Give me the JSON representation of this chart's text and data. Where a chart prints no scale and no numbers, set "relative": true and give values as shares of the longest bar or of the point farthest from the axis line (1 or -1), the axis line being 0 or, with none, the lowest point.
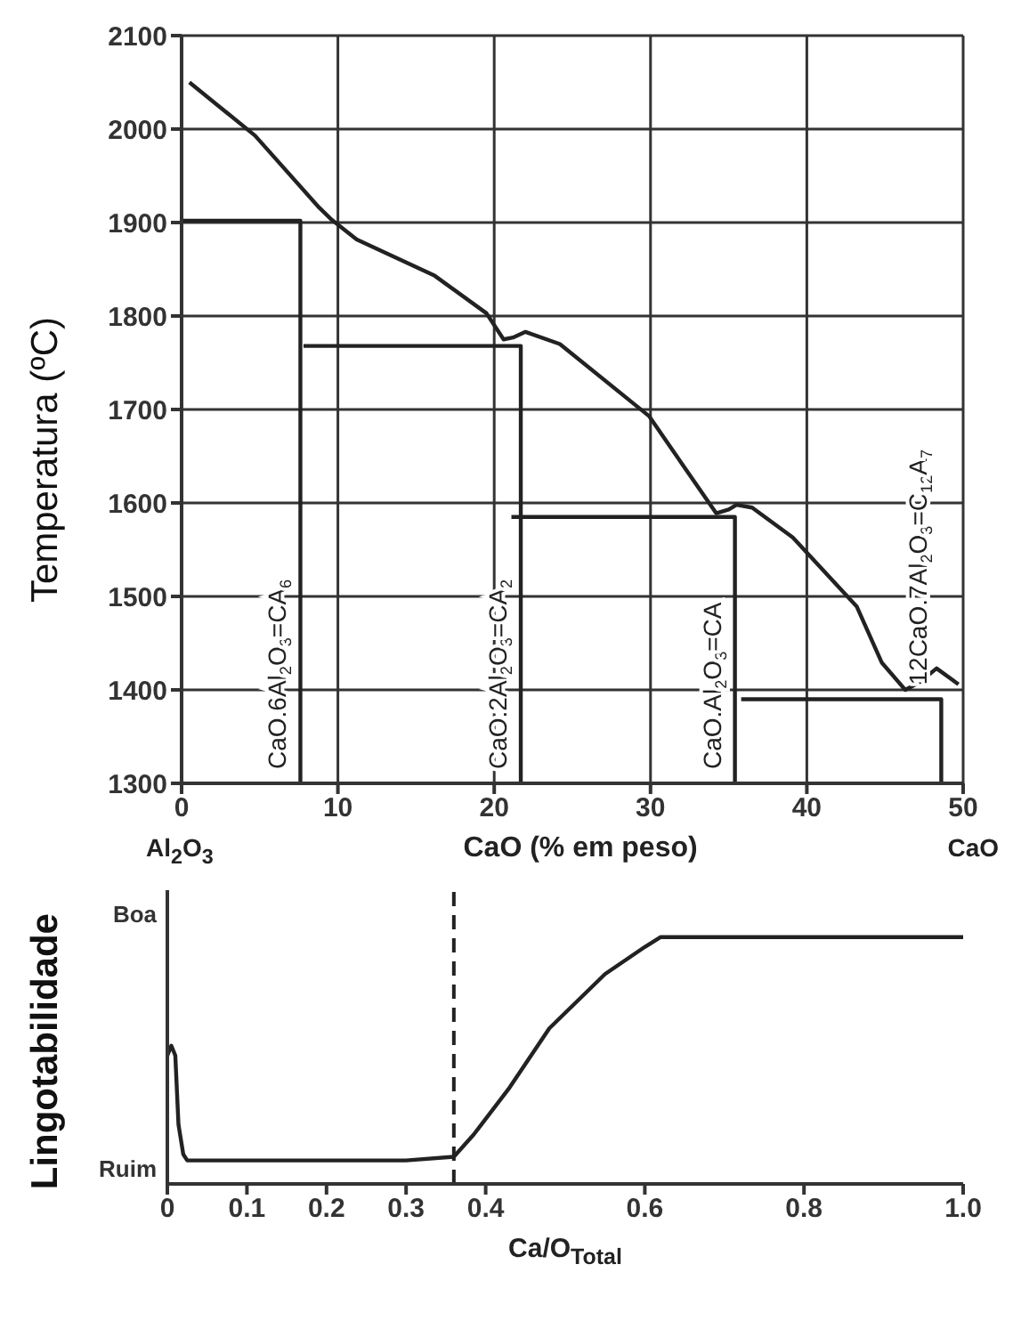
{
  "chart_data": [
    {
      "type": "line",
      "ylabel": "Temperatura (ºC)",
      "xlabel": "CaO (% em peso)",
      "xlim": [
        0,
        50
      ],
      "xticks": [
        0,
        10,
        20,
        30,
        40,
        50
      ],
      "ylim": [
        1300,
        2100
      ],
      "yticks": [
        1300,
        1400,
        1500,
        1600,
        1700,
        1800,
        1900,
        2000,
        2100
      ],
      "grid": true,
      "line_style": "solid",
      "series": [
        {
          "color": "#222222",
          "x": [
            0.5,
            4.7,
            8.8,
            9.6,
            11.2,
            16.2,
            19.5,
            20.6,
            21.2,
            22.0,
            24.2,
            29.9,
            34.2,
            35.0,
            35.5,
            36.5,
            39.1,
            43.2,
            44.8,
            46.3,
            47.2,
            48.3,
            49.7
          ],
          "values": [
            2050,
            1993,
            1916,
            1903,
            1882,
            1843,
            1803,
            1775,
            1777,
            1783,
            1770,
            1693,
            1589,
            1593,
            1598,
            1595,
            1563,
            1489,
            1429,
            1400,
            1408,
            1423,
            1406
          ]
        },
        {
          "color": "#222222",
          "x": [
            0,
            7.6,
            7.6
          ],
          "values": [
            1902,
            1902,
            1300
          ]
        },
        {
          "color": "#222222",
          "x": [
            7.8,
            21.7,
            21.7
          ],
          "values": [
            1768,
            1768,
            1300
          ]
        },
        {
          "color": "#222222",
          "x": [
            21.1,
            35.4,
            35.4
          ],
          "values": [
            1585,
            1585,
            1300
          ]
        },
        {
          "color": "#222222",
          "x": [
            35.8,
            48.6,
            48.6
          ],
          "values": [
            1390,
            1390,
            1300
          ]
        }
      ],
      "annotations": [
        "Al$_{2}$O$_{3}$",
        "CaO",
        {
          "text": "CaO.6Al$_{2}$O$_{3}$=CA$_{6}$",
          "x": 7.6,
          "y": 1300
        },
        {
          "text": "CaO.2Al$_{2}$O$_{3}$=CA$_{2}$",
          "x": 21.7,
          "y": 1300
        },
        {
          "text": "CaO.Al$_{2}$O$_{3}$=CA",
          "x": 35.4,
          "y": 1300
        },
        {
          "text": "12CaO.7Al$_{2}$O$_{3}$=C$_{12}$A$_{7}$",
          "x": 48.6,
          "y": 1390
        }
      ]
    },
    {
      "type": "line",
      "relative": true,
      "ylabel": "Lingotabilidade",
      "xlabel": "Ca/O$_{Total}$",
      "xlim": [
        0,
        1
      ],
      "xticks": [
        0,
        0.1,
        0.2,
        0.3,
        0.4,
        0.6,
        0.8,
        {
          "value": 1,
          "label": "1.0"
        }
      ],
      "line_style": "solid",
      "series": [
        {
          "color": "#222222",
          "x": [
            0,
            0.005,
            0.01,
            0.014,
            0.02,
            0.025,
            0.1,
            0.2,
            0.3,
            0.36,
            0.385,
            0.43,
            0.48,
            0.55,
            0.6,
            0.62,
            0.8,
            1.0
          ],
          "values": [
            0.52,
            0.56,
            0.52,
            0.24,
            0.12,
            0.095,
            0.095,
            0.095,
            0.095,
            0.11,
            0.2,
            0.39,
            0.63,
            0.85,
            0.96,
            1,
            1,
            1
          ]
        }
      ],
      "annotations": [
        "Boa",
        "Ruim"
      ],
      "ref_lines": [
        {
          "axis": "x",
          "value": 0.36,
          "line_style": "dashed",
          "color": "#222222"
        }
      ]
    }
  ]
}
